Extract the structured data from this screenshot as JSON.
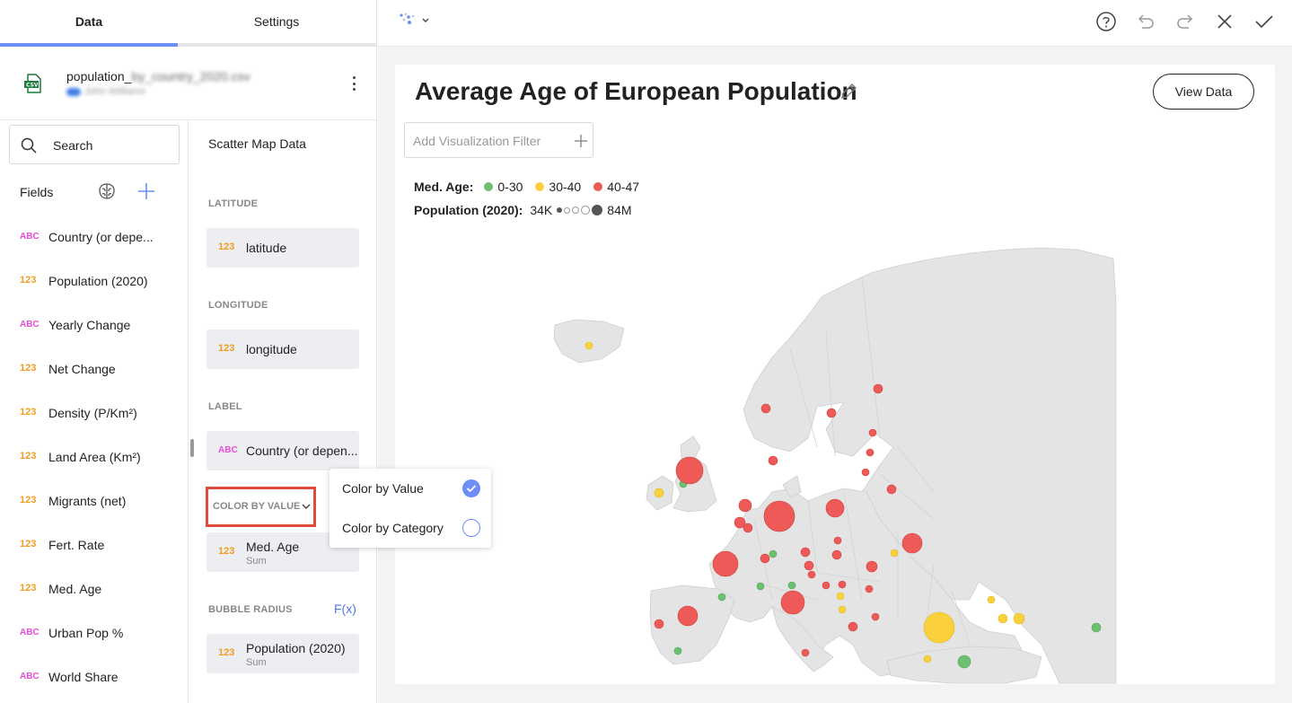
{
  "tabs": {
    "data": "Data",
    "settings": "Settings"
  },
  "source": {
    "file_prefix": "population_",
    "file_blurred": "by_country_2020.csv",
    "user_blurred": "John Williams"
  },
  "search": {
    "label": "Search"
  },
  "fields_title": "Fields",
  "fields": [
    {
      "type": "ABC",
      "label": "Country (or depe..."
    },
    {
      "type": "123",
      "label": "Population (2020)"
    },
    {
      "type": "ABC",
      "label": "Yearly Change"
    },
    {
      "type": "123",
      "label": "Net Change"
    },
    {
      "type": "123",
      "label": "Density (P/Km²)"
    },
    {
      "type": "123",
      "label": "Land Area (Km²)"
    },
    {
      "type": "123",
      "label": "Migrants (net)"
    },
    {
      "type": "123",
      "label": "Fert. Rate"
    },
    {
      "type": "123",
      "label": "Med. Age"
    },
    {
      "type": "ABC",
      "label": "Urban Pop %"
    },
    {
      "type": "ABC",
      "label": "World Share"
    }
  ],
  "config": {
    "title": "Scatter Map Data",
    "latitude": {
      "header": "LATITUDE",
      "type": "123",
      "value": "latitude"
    },
    "longitude": {
      "header": "LONGITUDE",
      "type": "123",
      "value": "longitude"
    },
    "label": {
      "header": "LABEL",
      "type": "ABC",
      "value": "Country (or depen..."
    },
    "color": {
      "header": "COLOR BY VALUE",
      "type": "123",
      "value": "Med. Age",
      "sub": "Sum"
    },
    "radius": {
      "header": "BUBBLE RADIUS",
      "fx": "F(x)",
      "type": "123",
      "value": "Population (2020)",
      "sub": "Sum"
    }
  },
  "popup": {
    "options": [
      {
        "label": "Color by Value",
        "selected": true
      },
      {
        "label": "Color by Category",
        "selected": false
      }
    ]
  },
  "card": {
    "title": "Average Age of European Population",
    "view_data": "View Data",
    "filter_placeholder": "Add Visualization Filter",
    "legend": {
      "age_label": "Med. Age:",
      "age_ranges": [
        {
          "label": "0-30",
          "color": "#6cc070"
        },
        {
          "label": "30-40",
          "color": "#fad03c"
        },
        {
          "label": "40-47",
          "color": "#ee5a57"
        }
      ],
      "pop_label": "Population (2020):",
      "pop_min": "34K",
      "pop_max": "84M"
    }
  },
  "colors": {
    "accent": "#6c8ef5",
    "highlight": "#e04b3e",
    "green": "#6cc070",
    "yellow": "#fad03c",
    "red": "#ee5a57",
    "land": "#e3e3e3"
  },
  "icons": [
    "csv-icon",
    "search-icon",
    "brain-icon",
    "add-field-icon",
    "chevron-down-icon",
    "scatter-map-icon",
    "help-icon",
    "undo-icon",
    "redo-icon",
    "close-icon",
    "check-icon",
    "pencil-icon",
    "plus-icon"
  ]
}
